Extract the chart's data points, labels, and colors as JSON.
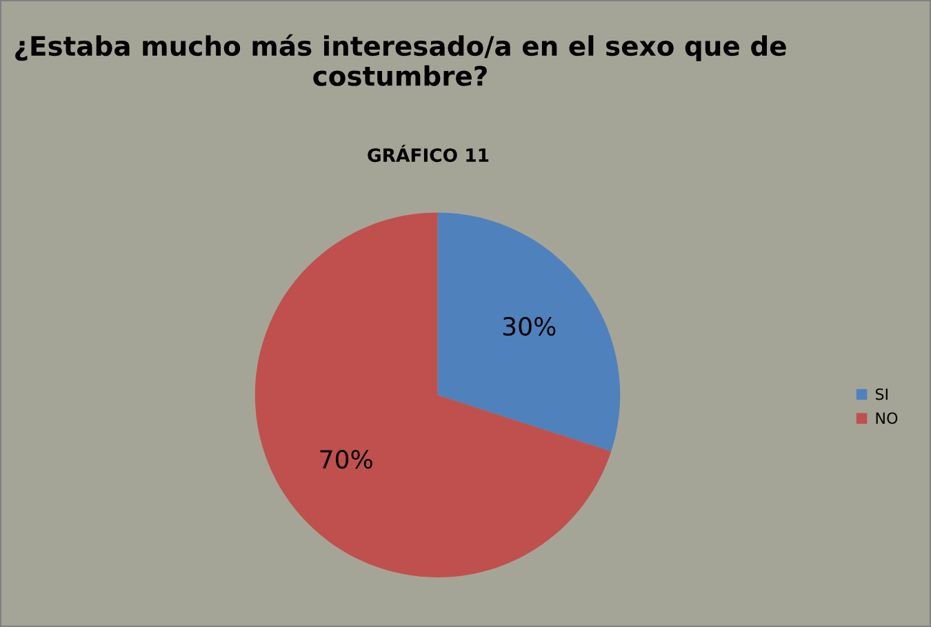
{
  "chart_data": {
    "type": "pie",
    "title": "¿Estaba mucho más interesado/a en el sexo que de costumbre?",
    "subtitle": "GRÁFICO 11",
    "categories": [
      "SI",
      "NO"
    ],
    "values": [
      30,
      70
    ],
    "colors": [
      "#4f81bd",
      "#c0504d"
    ],
    "value_labels": [
      "30%",
      "70%"
    ],
    "legend": "right"
  }
}
